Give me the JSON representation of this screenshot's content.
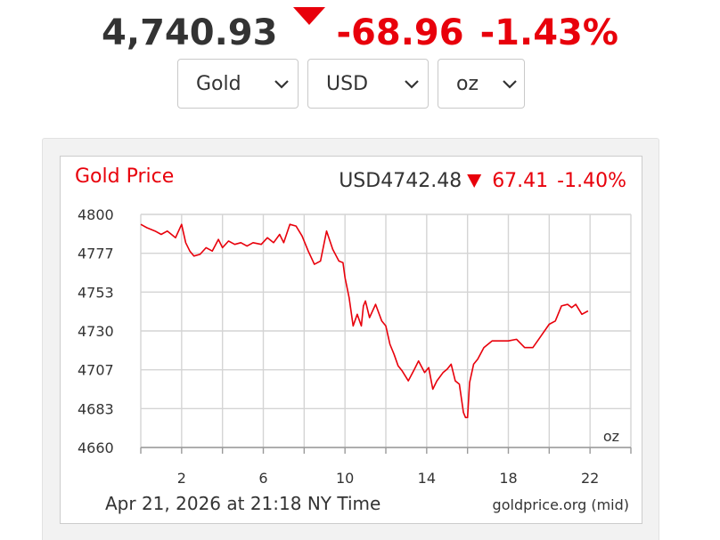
{
  "headline": {
    "price": "4,740.93",
    "change": "-68.96",
    "change_pct": "-1.43%",
    "direction_icon": "triangle-down-icon",
    "down_color": "#e8000b"
  },
  "selectors": [
    {
      "name": "metal-select",
      "value": "Gold"
    },
    {
      "name": "currency-select",
      "value": "USD"
    },
    {
      "name": "unit-select",
      "value": "oz"
    }
  ],
  "chart_data": {
    "type": "line",
    "title": "Gold Price",
    "price_label": "USD4742.48",
    "change": "67.41",
    "change_pct": "-1.40%",
    "unit_label": "oz",
    "footer_left": "Apr 21, 2026 at 21:18 NY Time",
    "footer_right": "goldprice.org (mid)",
    "line_color": "#e8000b",
    "grid": true,
    "x_range": [
      0,
      24
    ],
    "y_range": [
      4660,
      4800
    ],
    "x_ticks": [
      2,
      6,
      10,
      14,
      18,
      22
    ],
    "y_ticks": [
      {
        "value": 4800,
        "label": "4800"
      },
      {
        "value": 4776.67,
        "label": "4777"
      },
      {
        "value": 4753.33,
        "label": "4753"
      },
      {
        "value": 4730,
        "label": "4730"
      },
      {
        "value": 4706.67,
        "label": "4707"
      },
      {
        "value": 4683.33,
        "label": "4683"
      },
      {
        "value": 4660,
        "label": "4660"
      }
    ],
    "series": [
      {
        "x": [
          0.0,
          0.3,
          0.7,
          1.0,
          1.3,
          1.7,
          2.0,
          2.2,
          2.4,
          2.6,
          2.9,
          3.2,
          3.5,
          3.8,
          4.0,
          4.3,
          4.6,
          4.9,
          5.2,
          5.5,
          5.9,
          6.2,
          6.5,
          6.8,
          7.0,
          7.3,
          7.6,
          7.9,
          8.2,
          8.5,
          8.8,
          9.1,
          9.4,
          9.7,
          9.9,
          10.0,
          10.2,
          10.4,
          10.6,
          10.8,
          10.9,
          11.0,
          11.2,
          11.5,
          11.8,
          12.0,
          12.2,
          12.4,
          12.6,
          12.8,
          13.1,
          13.4,
          13.6,
          13.9,
          14.1,
          14.3,
          14.5,
          14.8,
          15.0,
          15.2,
          15.4,
          15.6,
          15.8,
          15.9,
          16.0,
          16.1,
          16.3,
          16.5,
          16.8,
          17.2,
          17.6,
          18.0,
          18.4,
          18.8,
          19.2,
          19.6,
          20.0,
          20.3,
          20.6,
          20.9,
          21.1,
          21.3,
          21.6,
          21.9
        ],
        "y": [
          4794,
          4792,
          4790,
          4788,
          4790,
          4786,
          4794,
          4783,
          4778,
          4775,
          4776,
          4780,
          4778,
          4785,
          4780,
          4784,
          4782,
          4783,
          4781,
          4783,
          4782,
          4786,
          4783,
          4788,
          4783,
          4794,
          4793,
          4787,
          4778,
          4770,
          4772,
          4790,
          4779,
          4772,
          4771,
          4762,
          4750,
          4733,
          4740,
          4733,
          4745,
          4748,
          4738,
          4746,
          4736,
          4733,
          4722,
          4716,
          4709,
          4706,
          4700,
          4707,
          4712,
          4705,
          4708,
          4695,
          4700,
          4705,
          4707,
          4710,
          4700,
          4698,
          4681,
          4678,
          4678,
          4699,
          4710,
          4713,
          4720,
          4724,
          4724,
          4724,
          4725,
          4720,
          4720,
          4727,
          4734,
          4736,
          4745,
          4746,
          4744,
          4746,
          4740,
          4742
        ]
      }
    ]
  }
}
